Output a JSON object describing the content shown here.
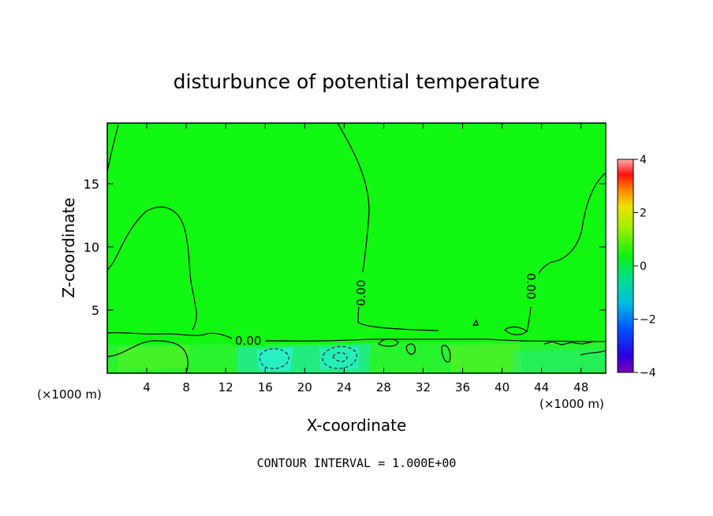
{
  "chart_data": {
    "type": "heatmap",
    "title": "disturbunce of potential temperature",
    "xlabel": "X-coordinate",
    "ylabel": "Z-coordinate",
    "x_unit_left": "(×1000 m)",
    "x_unit_right": "(×1000 m)",
    "xlim": [
      0,
      50.5
    ],
    "ylim": [
      0,
      19.8
    ],
    "x_ticks": [
      "4",
      "8",
      "12",
      "16",
      "20",
      "24",
      "28",
      "32",
      "36",
      "40",
      "44",
      "48"
    ],
    "y_ticks": [
      "5",
      "10",
      "15"
    ],
    "colorbar": {
      "range": [
        -4,
        4
      ],
      "ticks": [
        "4",
        "2",
        "0",
        "−2",
        "−4"
      ]
    },
    "contour_labels": [
      "0.00",
      "0.00",
      "0.00"
    ],
    "footer": "CONTOUR INTERVAL = 1.000E+00",
    "colors": {
      "field": "#11f711",
      "contour": "#000000",
      "negative_patch": "#1ee8a0",
      "deep_negative": "#2af0d0"
    }
  }
}
